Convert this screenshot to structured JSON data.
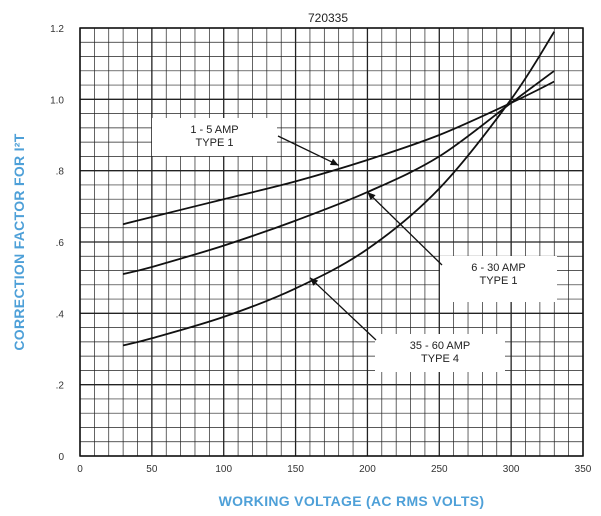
{
  "chart_data": {
    "type": "line",
    "title": "720335",
    "xlabel": "WORKING VOLTAGE (AC RMS VOLTS)",
    "ylabel": "CORRECTION FACTOR FOR I²T",
    "xlim": [
      0,
      350
    ],
    "ylim": [
      0,
      1.2
    ],
    "x_ticks": [
      "0",
      "50",
      "100",
      "150",
      "200",
      "250",
      "300",
      "350"
    ],
    "y_ticks": [
      "0",
      ".2",
      ".4",
      ".6",
      ".8",
      "1.0",
      "1.2"
    ],
    "grid": true,
    "series": [
      {
        "name": "1 - 5 AMP TYPE 1",
        "x": [
          30,
          50,
          100,
          150,
          200,
          250,
          300,
          330
        ],
        "y": [
          0.65,
          0.67,
          0.72,
          0.77,
          0.83,
          0.9,
          0.99,
          1.05
        ]
      },
      {
        "name": "6 - 30 AMP TYPE 1",
        "x": [
          30,
          50,
          100,
          150,
          200,
          250,
          300,
          330
        ],
        "y": [
          0.51,
          0.53,
          0.59,
          0.66,
          0.74,
          0.84,
          0.99,
          1.08
        ]
      },
      {
        "name": "35 - 60 AMP TYPE 4",
        "x": [
          30,
          50,
          100,
          150,
          200,
          250,
          300,
          330
        ],
        "y": [
          0.31,
          0.33,
          0.39,
          0.47,
          0.58,
          0.75,
          1.0,
          1.19
        ]
      }
    ],
    "annotations": [
      {
        "lines": [
          "1 - 5 AMP",
          "TYPE 1"
        ],
        "series": 0,
        "point_x": 180,
        "point_y": 0.815
      },
      {
        "lines": [
          "6 - 30 AMP",
          "TYPE 1"
        ],
        "series": 1,
        "point_x": 200,
        "point_y": 0.74
      },
      {
        "lines": [
          "35 - 60 AMP",
          "TYPE 4"
        ],
        "series": 2,
        "point_x": 160,
        "point_y": 0.5
      }
    ],
    "colors": {
      "curve": "#111111",
      "grid": "#222222",
      "axis_label": "#4ea0d8"
    }
  }
}
